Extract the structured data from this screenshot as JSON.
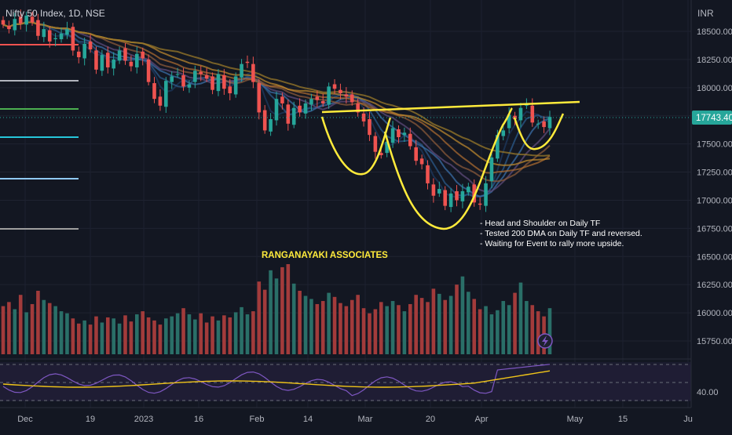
{
  "header": {
    "symbol": "Nifty 50 Index, 1D, NSE",
    "currency": "INR"
  },
  "colors": {
    "up": "#26a69a",
    "down": "#ef5350",
    "up_vol": "#2a6f68",
    "down_vol": "#a23b3b",
    "pattern": "#ffeb3b",
    "rsi": "#7e57c2",
    "rsi_ma": "#f0c419",
    "last_price_bg": "#26a69a"
  },
  "annotations": {
    "watermark": "RANGANAYAKI ASSOCIATES",
    "notes": [
      "- Head and Shoulder on Daily TF",
      "- Tested 200 DMA on Daily TF and reversed.",
      "- Waiting for Event to rally more upside."
    ]
  },
  "chart_data": {
    "type": "candlestick",
    "title": "Nifty 50 Index, 1D, NSE",
    "y_axis": {
      "unit": "INR",
      "ticks": [
        18500,
        18250,
        18000,
        17750,
        17500,
        17250,
        17000,
        16750,
        16500,
        16250,
        16000,
        15750
      ],
      "range": [
        15590,
        18650
      ]
    },
    "x_axis": {
      "ticks": [
        "Dec",
        "19",
        "2023",
        "16",
        "Feb",
        "14",
        "Mar",
        "20",
        "Apr",
        "May",
        "15",
        "Ju"
      ]
    },
    "last_price": "17743.40",
    "closes": [
      18560,
      18520,
      18610,
      18570,
      18640,
      18580,
      18460,
      18520,
      18410,
      18440,
      18480,
      18520,
      18330,
      18270,
      18390,
      18340,
      18160,
      18290,
      18180,
      18250,
      18330,
      18240,
      18190,
      18300,
      18260,
      18050,
      17900,
      17840,
      18060,
      18100,
      18120,
      18010,
      18030,
      18150,
      18120,
      18080,
      17980,
      18120,
      17990,
      17950,
      18100,
      18210,
      18220,
      18050,
      17780,
      17620,
      17720,
      17900,
      17860,
      17680,
      17820,
      17780,
      17860,
      17900,
      17890,
      17860,
      18010,
      17990,
      17950,
      17920,
      17870,
      17780,
      17700,
      17580,
      17430,
      17400,
      17520,
      17640,
      17560,
      17600,
      17480,
      17350,
      17320,
      17150,
      17040,
      17100,
      16950,
      17060,
      17000,
      17080,
      17120,
      16980,
      16960,
      17150,
      17380,
      17580,
      17620,
      17760,
      17720,
      17820,
      17850,
      17690,
      17680,
      17650,
      17740
    ],
    "volume": [
      47,
      51,
      44,
      58,
      41,
      49,
      62,
      53,
      50,
      47,
      42,
      40,
      35,
      30,
      33,
      29,
      37,
      31,
      36,
      35,
      30,
      38,
      32,
      39,
      42,
      36,
      33,
      29,
      35,
      37,
      40,
      45,
      39,
      34,
      40,
      31,
      37,
      33,
      38,
      36,
      41,
      46,
      39,
      42,
      71,
      63,
      82,
      74,
      85,
      88,
      69,
      62,
      57,
      54,
      49,
      52,
      60,
      56,
      50,
      47,
      53,
      58,
      45,
      40,
      44,
      51,
      47,
      52,
      48,
      42,
      49,
      58,
      55,
      51,
      64,
      59,
      53,
      57,
      68,
      76,
      61,
      54,
      44,
      47,
      39,
      43,
      52,
      48,
      60,
      70,
      52,
      48,
      42,
      37,
      45
    ],
    "rsi": {
      "type": "line",
      "series": [
        {
          "values": []
        },
        {
          "values": []
        }
      ],
      "ticks": [
        40.0
      ]
    }
  }
}
